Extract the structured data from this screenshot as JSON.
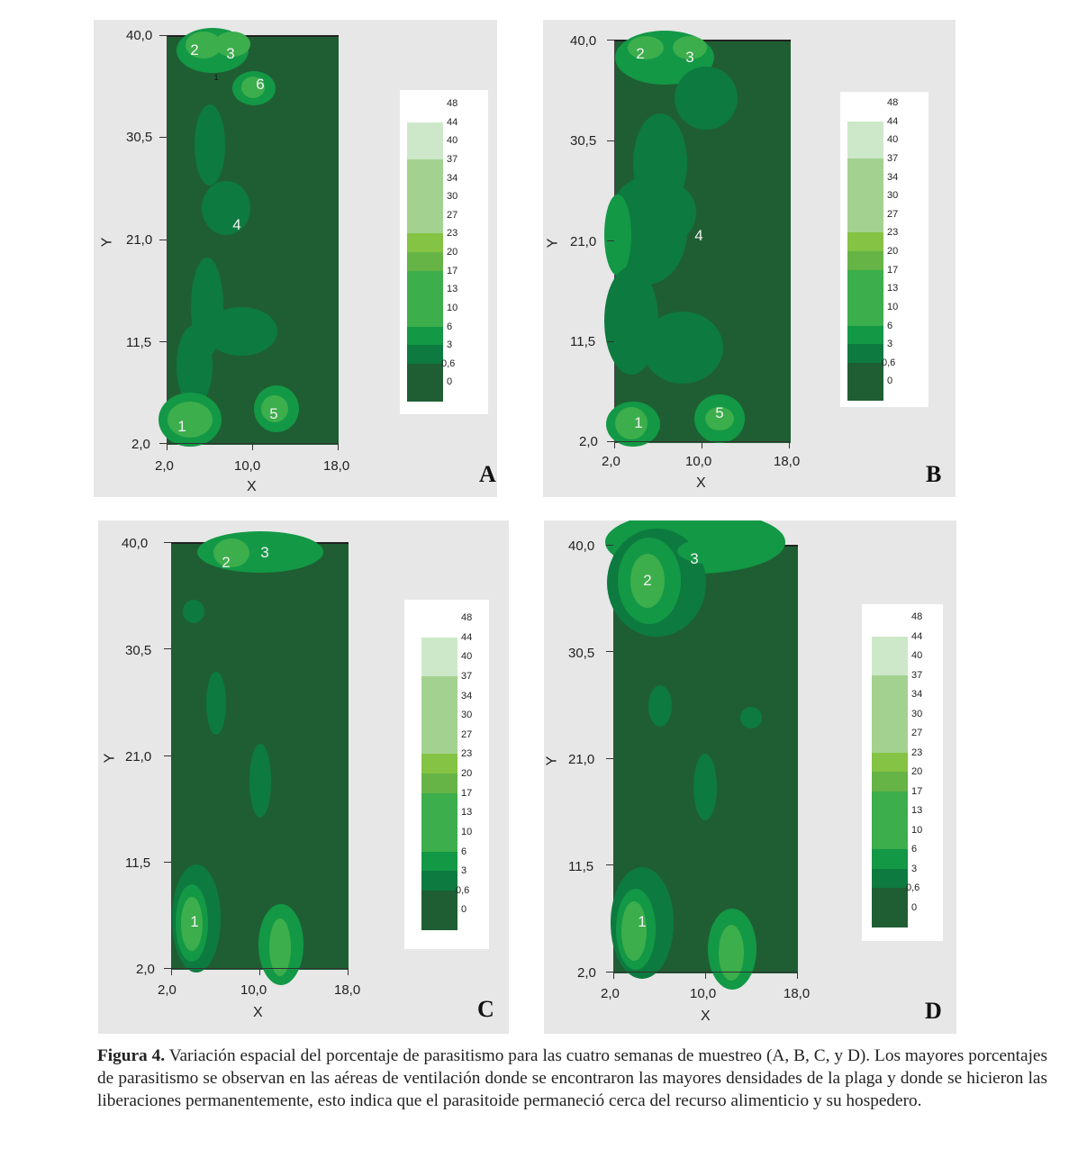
{
  "axes": {
    "xlabel": "X",
    "ylabel": "Y",
    "x_ticks": [
      "2,0",
      "10,0",
      "18,0"
    ],
    "y_ticks": [
      "40,0",
      "30,5",
      "21,0",
      "11,5",
      "2,0"
    ]
  },
  "legend_labels": [
    "48",
    "44",
    "40",
    "37",
    "34",
    "30",
    "27",
    "23",
    "20",
    "17",
    "13",
    "10",
    "6",
    "3",
    "0,6",
    "0"
  ],
  "legend_colors": [
    "#ffffff",
    "#cde8c9",
    "#cde8c9",
    "#a3d290",
    "#a3d290",
    "#a3d290",
    "#a3d290",
    "#84c343",
    "#66b446",
    "#3cae4c",
    "#3cae4c",
    "#3cae4c",
    "#139846",
    "#0d7a3f",
    "#1f5e33",
    "#1f5e33"
  ],
  "panels": [
    {
      "letter": "A",
      "markers": [
        "1",
        "2",
        "3",
        "4",
        "5",
        "6"
      ],
      "marker_small": "1"
    },
    {
      "letter": "B",
      "markers": [
        "1",
        "2",
        "3",
        "4",
        "5"
      ]
    },
    {
      "letter": "C",
      "markers": [
        "1",
        "2",
        "3"
      ]
    },
    {
      "letter": "D",
      "markers": [
        "1",
        "2",
        "3"
      ]
    }
  ],
  "chart_data": {
    "type": "heatmap",
    "title": "Variación espacial del porcentaje de parasitismo",
    "xlabel": "X",
    "ylabel": "Y",
    "xlim": [
      2.0,
      18.0
    ],
    "ylim": [
      2.0,
      40.0
    ],
    "x_ticks": [
      2.0,
      10.0,
      18.0
    ],
    "y_ticks": [
      2.0,
      11.5,
      21.0,
      30.5,
      40.0
    ],
    "color_levels": [
      0,
      0.6,
      3,
      6,
      10,
      13,
      17,
      20,
      23,
      27,
      30,
      34,
      37,
      40,
      44,
      48
    ],
    "panels": [
      "A",
      "B",
      "C",
      "D"
    ]
  },
  "caption": {
    "label": "Figura 4.",
    "text": " Variación espacial del porcentaje de parasitismo para las cuatro semanas de muestreo (A, B, C, y D). Los mayores porcentajes de parasitismo se observan en las aéreas de ventilación donde se encontraron las mayores densidades de la plaga y donde se hicieron las liberaciones permanentemente, esto indica que el parasitoide permaneció cerca del recurso alimenticio y su hospedero."
  }
}
